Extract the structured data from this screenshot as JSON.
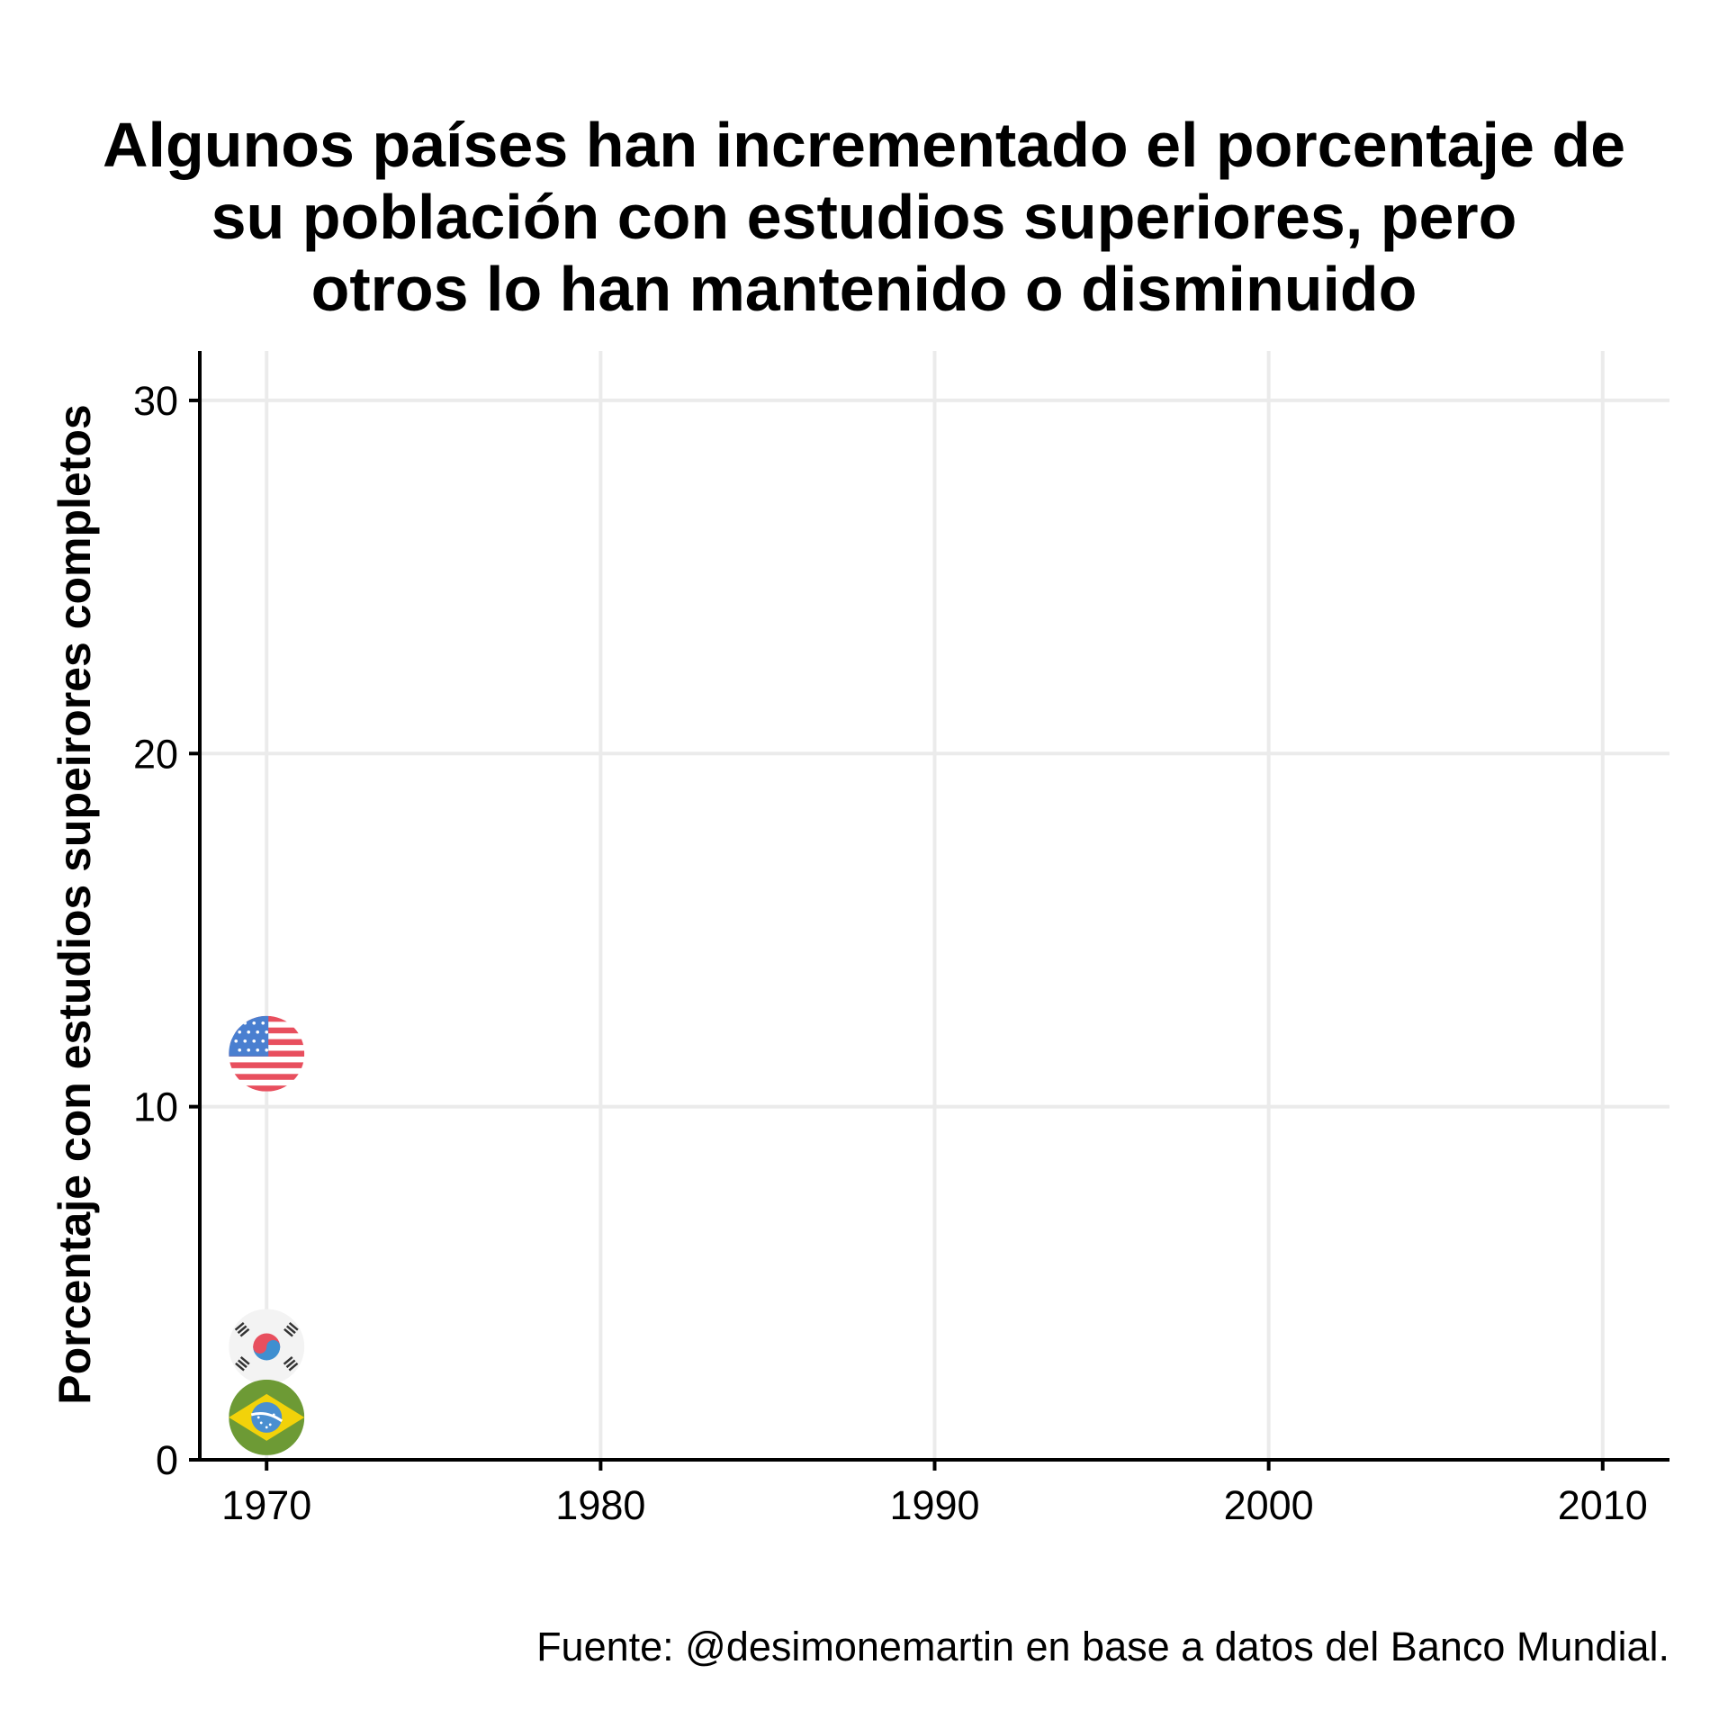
{
  "chart_data": {
    "type": "scatter",
    "title": "Algunos países han incrementado el porcentaje de su población con estudios superiores, pero otros lo han mantenido o disminuido",
    "title_lines": [
      "Algunos países han incrementado el porcentaje de",
      "su población con estudios superiores, pero",
      "otros lo han mantenido o disminuido"
    ],
    "xlabel": "",
    "ylabel": "Porcentaje con estudios supeirores completos",
    "caption": "Fuente: @desimonemartin en base a datos del Banco Mundial.",
    "xlim": [
      1968,
      2012
    ],
    "ylim": [
      0,
      31.4
    ],
    "x_ticks": [
      1970,
      1980,
      1990,
      2000,
      2010
    ],
    "y_ticks": [
      0,
      10,
      20,
      30
    ],
    "grid": true,
    "marker": "circular-country-flag",
    "series": [
      {
        "name": "Estados Unidos",
        "flag_icon": "usa-flag-icon",
        "x": [
          1970
        ],
        "y": [
          11.5
        ]
      },
      {
        "name": "Corea del Sur",
        "flag_icon": "south-korea-flag-icon",
        "x": [
          1970
        ],
        "y": [
          3.2
        ]
      },
      {
        "name": "Brasil",
        "flag_icon": "brazil-flag-icon",
        "x": [
          1970
        ],
        "y": [
          1.2
        ]
      }
    ],
    "colors": {
      "grid": "#ebebeb",
      "axis": "#000000",
      "usa_red": "#e84f5e",
      "usa_blue": "#4a7fd0",
      "korea_red": "#e84f5e",
      "korea_blue": "#3f8fd0",
      "brazil_green": "#6d9a35",
      "brazil_yellow": "#f2d20a",
      "brazil_blue": "#4a8fd0"
    }
  }
}
